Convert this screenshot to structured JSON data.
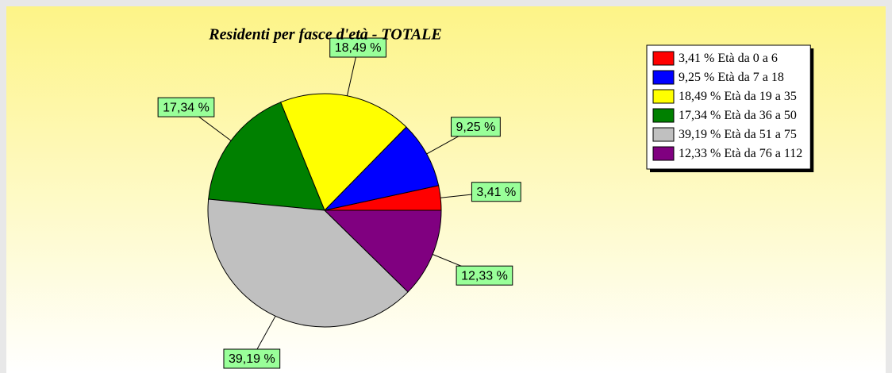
{
  "chart_data": {
    "type": "pie",
    "title": "Residenti per fasce d'età - TOTALE",
    "categories": [
      "Età da 0 a 6",
      "Età da 7 a 18",
      "Età da 19 a 35",
      "Età da 36 a 50",
      "Età da 51 a 75",
      "Età da 76 a 112"
    ],
    "values": [
      3.41,
      9.25,
      18.49,
      17.34,
      39.19,
      12.33
    ],
    "value_labels": [
      "3,41 %",
      "9,25 %",
      "18,49 %",
      "17,34 %",
      "39,19 %",
      "12,33 %"
    ],
    "colors": [
      "#ff0000",
      "#0000ff",
      "#ffff00",
      "#008000",
      "#c0c0c0",
      "#800080"
    ],
    "legend": "upper right"
  }
}
